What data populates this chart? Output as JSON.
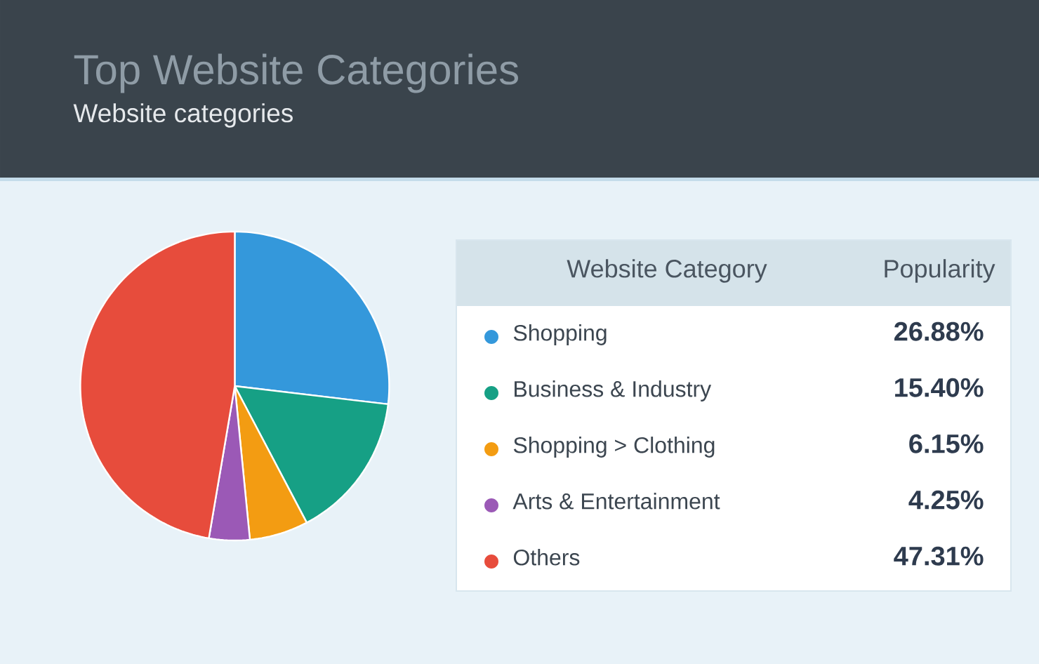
{
  "chart_data": {
    "type": "pie",
    "title": "Top Website Categories",
    "subtitle": "Website categories",
    "categories": [
      "Shopping",
      "Business & Industry",
      "Shopping > Clothing",
      "Arts & Entertainment",
      "Others"
    ],
    "values": [
      26.88,
      15.4,
      6.15,
      4.25,
      47.31
    ],
    "colors": [
      "#3498db",
      "#16a085",
      "#f39c12",
      "#9b59b6",
      "#e74c3c"
    ],
    "value_labels": [
      "26.88%",
      "15.40%",
      "6.15%",
      "4.25%",
      "47.31%"
    ],
    "legend": "right",
    "legend_title": "Website Category",
    "annotations": [
      "Popularity"
    ]
  }
}
